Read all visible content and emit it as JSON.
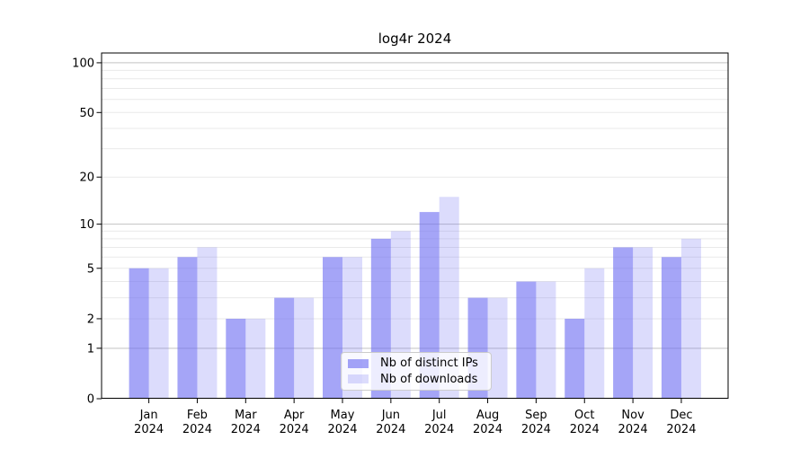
{
  "title": "log4r 2024",
  "legend": {
    "items": [
      {
        "label": "Nb of distinct IPs",
        "series": "ips"
      },
      {
        "label": "Nb of downloads",
        "series": "downloads"
      }
    ]
  },
  "colors": {
    "ips_bar": "rgba(110,110,242,0.62)",
    "downloads_bar": "rgba(110,110,242,0.24)",
    "grid_major": "#c3c3c3",
    "grid_minor": "#e9e9e9",
    "axis": "#000000",
    "text": "#000000"
  },
  "chart_data": {
    "type": "bar",
    "title": "log4r 2024",
    "categories": [
      "Jan 2024",
      "Feb 2024",
      "Mar 2024",
      "Apr 2024",
      "May 2024",
      "Jun 2024",
      "Jul 2024",
      "Aug 2024",
      "Sep 2024",
      "Oct 2024",
      "Nov 2024",
      "Dec 2024"
    ],
    "series": [
      {
        "name": "Nb of distinct IPs",
        "values": [
          5,
          6,
          2,
          3,
          6,
          8,
          12,
          3,
          4,
          2,
          7,
          6
        ]
      },
      {
        "name": "Nb of downloads",
        "values": [
          5,
          7,
          2,
          3,
          6,
          9,
          15,
          3,
          4,
          5,
          7,
          8
        ]
      }
    ],
    "xlabel": "",
    "ylabel": "",
    "y_scale": "log10(1+x)",
    "y_tick_labels": [
      "0",
      "1",
      "2",
      "5",
      "10",
      "20",
      "50",
      "100"
    ],
    "y_major_gridlines": [
      1,
      10,
      100
    ],
    "y_minor_gridlines": [
      2,
      3,
      4,
      5,
      6,
      7,
      8,
      9,
      20,
      30,
      40,
      50,
      60,
      70,
      80,
      90
    ],
    "ylim": [
      0,
      115
    ],
    "grid": true,
    "legend_position": "lower center"
  }
}
